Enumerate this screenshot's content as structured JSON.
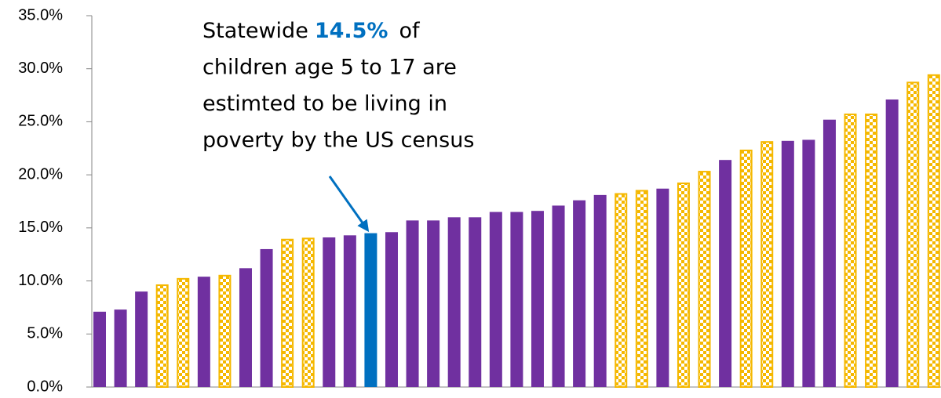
{
  "chart_data": {
    "type": "bar",
    "values": [
      7.1,
      7.3,
      9.0,
      9.6,
      10.2,
      10.4,
      10.5,
      11.2,
      13.0,
      13.9,
      14.0,
      14.1,
      14.3,
      14.5,
      14.6,
      15.7,
      15.7,
      16.0,
      16.0,
      16.5,
      16.5,
      16.6,
      17.1,
      17.6,
      18.1,
      18.2,
      18.5,
      18.7,
      19.2,
      20.3,
      21.4,
      22.3,
      23.1,
      23.2,
      23.3,
      25.2,
      25.7,
      25.7,
      27.1,
      28.7,
      29.4
    ],
    "colors": [
      "#7030a0",
      "#7030a0",
      "#7030a0",
      "#f5b800",
      "#f5b800",
      "#7030a0",
      "#f5b800",
      "#7030a0",
      "#7030a0",
      "#f5b800",
      "#f5b800",
      "#7030a0",
      "#7030a0",
      "#0070c0",
      "#7030a0",
      "#7030a0",
      "#7030a0",
      "#7030a0",
      "#7030a0",
      "#7030a0",
      "#7030a0",
      "#7030a0",
      "#7030a0",
      "#7030a0",
      "#7030a0",
      "#f5b800",
      "#f5b800",
      "#7030a0",
      "#f5b800",
      "#f5b800",
      "#7030a0",
      "#f5b800",
      "#f5b800",
      "#7030a0",
      "#7030a0",
      "#7030a0",
      "#f5b800",
      "#f5b800",
      "#7030a0",
      "#f5b800",
      "#f5b800"
    ],
    "patterns": [
      "solid",
      "solid",
      "solid",
      "checkered",
      "checkered",
      "solid",
      "checkered",
      "solid",
      "solid",
      "checkered",
      "checkered",
      "solid",
      "solid",
      "solid",
      "solid",
      "solid",
      "solid",
      "solid",
      "solid",
      "solid",
      "solid",
      "solid",
      "solid",
      "solid",
      "solid",
      "checkered",
      "checkered",
      "solid",
      "checkered",
      "checkered",
      "solid",
      "checkered",
      "checkered",
      "solid",
      "solid",
      "solid",
      "checkered",
      "checkered",
      "solid",
      "checkered",
      "checkered"
    ],
    "ylim": [
      0,
      35
    ],
    "yticks": [
      {
        "value": 0,
        "label": "0.0%"
      },
      {
        "value": 5,
        "label": "5.0%"
      },
      {
        "value": 10,
        "label": "10.0%"
      },
      {
        "value": 15,
        "label": "15.0%"
      },
      {
        "value": 20,
        "label": "20.0%"
      },
      {
        "value": 25,
        "label": "25.0%"
      },
      {
        "value": 30,
        "label": "30.0%"
      },
      {
        "value": 35,
        "label": "35.0%"
      }
    ],
    "annotation": {
      "prefix": "Statewide",
      "highlight": "14.5%",
      "rest": "of",
      "lines": [
        "children age 5 to 17 are",
        "estimted to be living in",
        "poverty by the US census"
      ],
      "color": "#0070c0",
      "target": 13
    }
  }
}
